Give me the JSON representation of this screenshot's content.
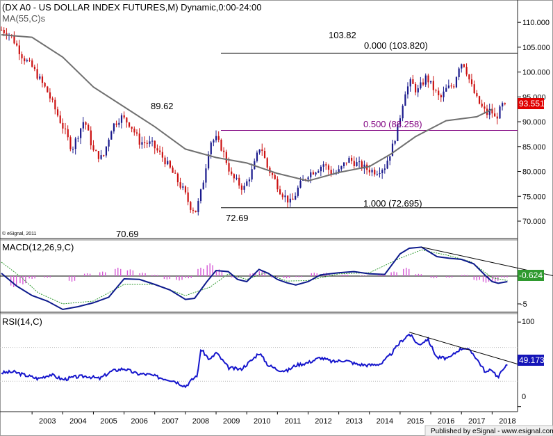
{
  "chart_data": [
    {
      "type": "candlestick",
      "title": "(DX A0 - US DOLLAR INDEX FUTURES,M) Dynamic,0:00-24:00",
      "overlay_label": "MA(55,C)s",
      "watermark": "© eSignal, 2011",
      "ylim": [
        66.5,
        114.5
      ],
      "yticks": [
        70,
        75,
        80,
        85,
        90,
        95,
        100,
        105,
        110
      ],
      "ytick_labels": [
        "70.000",
        "75.000",
        "80.000",
        "85.000",
        "90.000",
        "95.000",
        "100.000",
        "105.000",
        "110.000"
      ],
      "last_value": 93.551,
      "last_value_label": "93.551",
      "annotations": {
        "low_2008": {
          "value": 70.69,
          "label": "70.69"
        },
        "high_2008": {
          "value": 89.62,
          "label": "89.62"
        },
        "low_2011": {
          "value": 72.69,
          "label": "72.69"
        },
        "high_2017": {
          "value": 103.82,
          "label": "103.82"
        }
      },
      "fib_levels": [
        {
          "ratio": "0.000",
          "value": 103.82,
          "label": "0.000 (103.820)"
        },
        {
          "ratio": "0.500",
          "value": 88.258,
          "label": "0.500 (88.258)"
        },
        {
          "ratio": "1.000",
          "value": 72.695,
          "label": "1.000 (72.695)"
        }
      ],
      "ma_series": {
        "name": "MA(55,C)",
        "points": [
          [
            2002.0,
            107.5
          ],
          [
            2003.0,
            107.0
          ],
          [
            2004.0,
            103.0
          ],
          [
            2005.0,
            97.0
          ],
          [
            2006.0,
            93.0
          ],
          [
            2007.0,
            89.0
          ],
          [
            2008.0,
            84.5
          ],
          [
            2009.0,
            82.8
          ],
          [
            2010.0,
            81.7
          ],
          [
            2011.0,
            79.6
          ],
          [
            2012.0,
            78.1
          ],
          [
            2013.0,
            79.8
          ],
          [
            2014.0,
            81.0
          ],
          [
            2014.7,
            83.5
          ],
          [
            2015.5,
            87.0
          ],
          [
            2016.5,
            90.2
          ],
          [
            2017.5,
            91.0
          ],
          [
            2018.0,
            92.5
          ]
        ]
      },
      "close_path": [
        [
          2002.0,
          108.5
        ],
        [
          2002.3,
          107.5
        ],
        [
          2002.7,
          103.0
        ],
        [
          2003.0,
          101.0
        ],
        [
          2003.5,
          96.0
        ],
        [
          2004.0,
          89.0
        ],
        [
          2004.3,
          84.5
        ],
        [
          2004.7,
          90.5
        ],
        [
          2005.0,
          84.0
        ],
        [
          2005.3,
          82.5
        ],
        [
          2005.6,
          89.0
        ],
        [
          2005.9,
          91.0
        ],
        [
          2006.2,
          89.5
        ],
        [
          2006.5,
          86.0
        ],
        [
          2006.9,
          85.5
        ],
        [
          2007.3,
          82.5
        ],
        [
          2007.7,
          78.5
        ],
        [
          2007.95,
          76.0
        ],
        [
          2008.15,
          73.0
        ],
        [
          2008.35,
          72.0
        ],
        [
          2008.55,
          77.0
        ],
        [
          2008.8,
          86.0
        ],
        [
          2009.0,
          86.5
        ],
        [
          2009.2,
          84.5
        ],
        [
          2009.5,
          79.0
        ],
        [
          2009.9,
          76.5
        ],
        [
          2010.2,
          80.5
        ],
        [
          2010.45,
          85.5
        ],
        [
          2010.65,
          81.0
        ],
        [
          2010.85,
          79.0
        ],
        [
          2011.1,
          76.0
        ],
        [
          2011.3,
          74.5
        ],
        [
          2011.45,
          73.5
        ],
        [
          2011.7,
          77.0
        ],
        [
          2012.0,
          79.5
        ],
        [
          2012.3,
          80.5
        ],
        [
          2012.5,
          81.5
        ],
        [
          2012.8,
          79.5
        ],
        [
          2013.0,
          80.0
        ],
        [
          2013.3,
          82.5
        ],
        [
          2013.6,
          81.5
        ],
        [
          2013.9,
          80.5
        ],
        [
          2014.2,
          80.0
        ],
        [
          2014.5,
          81.0
        ],
        [
          2014.75,
          85.0
        ],
        [
          2014.95,
          89.5
        ],
        [
          2015.15,
          96.0
        ],
        [
          2015.35,
          98.0
        ],
        [
          2015.55,
          96.0
        ],
        [
          2015.85,
          99.0
        ],
        [
          2016.1,
          96.5
        ],
        [
          2016.3,
          94.5
        ],
        [
          2016.5,
          96.5
        ],
        [
          2016.75,
          97.5
        ],
        [
          2016.95,
          102.0
        ],
        [
          2017.1,
          101.5
        ],
        [
          2017.3,
          97.5
        ],
        [
          2017.5,
          94.5
        ],
        [
          2017.7,
          92.5
        ],
        [
          2017.85,
          91.5
        ],
        [
          2017.95,
          92.5
        ],
        [
          2018.1,
          90.5
        ],
        [
          2018.35,
          93.5
        ],
        [
          2018.45,
          93.55
        ]
      ]
    },
    {
      "type": "line",
      "title": "MACD(12,26,9,C)",
      "ylim": [
        -6.5,
        6.5
      ],
      "ytick_labels": {
        "low": "-5"
      },
      "last_value": -0.624,
      "last_value_label": "-0.624",
      "series": [
        {
          "name": "MACD",
          "points": [
            [
              2002.0,
              0.5
            ],
            [
              2002.5,
              -1.8
            ],
            [
              2003.0,
              -3.5
            ],
            [
              2003.5,
              -4.5
            ],
            [
              2004.0,
              -6.0
            ],
            [
              2004.5,
              -5.5
            ],
            [
              2005.0,
              -4.8
            ],
            [
              2005.5,
              -3.8
            ],
            [
              2006.0,
              -0.5
            ],
            [
              2006.5,
              -0.6
            ],
            [
              2007.0,
              -1.5
            ],
            [
              2007.5,
              -2.5
            ],
            [
              2008.0,
              -4.2
            ],
            [
              2008.3,
              -4.0
            ],
            [
              2008.7,
              -1.0
            ],
            [
              2009.0,
              1.0
            ],
            [
              2009.4,
              0.8
            ],
            [
              2009.7,
              -0.6
            ],
            [
              2010.0,
              -1.0
            ],
            [
              2010.4,
              1.2
            ],
            [
              2010.7,
              0.5
            ],
            [
              2011.0,
              -0.6
            ],
            [
              2011.3,
              -1.2
            ],
            [
              2011.6,
              -1.6
            ],
            [
              2012.0,
              -1.0
            ],
            [
              2012.4,
              0.2
            ],
            [
              2013.0,
              0.6
            ],
            [
              2013.5,
              0.8
            ],
            [
              2014.0,
              0.4
            ],
            [
              2014.5,
              0.3
            ],
            [
              2015.0,
              4.0
            ],
            [
              2015.3,
              5.0
            ],
            [
              2015.7,
              5.2
            ],
            [
              2016.2,
              3.5
            ],
            [
              2016.6,
              3.2
            ],
            [
              2017.0,
              3.0
            ],
            [
              2017.4,
              2.2
            ],
            [
              2017.8,
              0.0
            ],
            [
              2018.0,
              -1.0
            ],
            [
              2018.2,
              -1.3
            ],
            [
              2018.5,
              -1.0
            ]
          ]
        },
        {
          "name": "Signal",
          "points": [
            [
              2002.0,
              2.5
            ],
            [
              2002.6,
              0.0
            ],
            [
              2003.2,
              -3.0
            ],
            [
              2004.0,
              -5.0
            ],
            [
              2005.0,
              -4.5
            ],
            [
              2006.0,
              -1.5
            ],
            [
              2007.0,
              -1.5
            ],
            [
              2008.0,
              -3.5
            ],
            [
              2008.8,
              -2.0
            ],
            [
              2009.4,
              0.4
            ],
            [
              2010.0,
              -0.6
            ],
            [
              2010.6,
              0.6
            ],
            [
              2011.3,
              -0.9
            ],
            [
              2012.0,
              -0.8
            ],
            [
              2013.0,
              0.4
            ],
            [
              2014.0,
              0.6
            ],
            [
              2015.0,
              3.2
            ],
            [
              2015.7,
              4.7
            ],
            [
              2016.5,
              3.8
            ],
            [
              2017.3,
              2.6
            ],
            [
              2018.0,
              -0.3
            ],
            [
              2018.5,
              -0.8
            ]
          ]
        }
      ],
      "histogram": [
        [
          2002.4,
          -2.0
        ],
        [
          2002.7,
          -1.5
        ],
        [
          2003.0,
          -0.5
        ],
        [
          2003.5,
          -0.3
        ],
        [
          2004.3,
          -1.0
        ],
        [
          2004.8,
          0.5
        ],
        [
          2005.3,
          0.8
        ],
        [
          2005.8,
          1.5
        ],
        [
          2006.2,
          1.2
        ],
        [
          2006.6,
          0.6
        ],
        [
          2007.0,
          0.2
        ],
        [
          2007.4,
          -0.6
        ],
        [
          2007.8,
          -0.8
        ],
        [
          2008.1,
          -0.4
        ],
        [
          2008.5,
          1.5
        ],
        [
          2008.8,
          2.3
        ],
        [
          2009.1,
          1.2
        ],
        [
          2009.6,
          -0.3
        ],
        [
          2010.2,
          0.5
        ],
        [
          2010.5,
          1.0
        ],
        [
          2010.9,
          -0.3
        ],
        [
          2011.3,
          -0.4
        ],
        [
          2011.7,
          -0.2
        ],
        [
          2012.2,
          0.6
        ],
        [
          2012.6,
          0.6
        ],
        [
          2013.2,
          0.3
        ],
        [
          2013.8,
          0.1
        ],
        [
          2014.4,
          0.4
        ],
        [
          2014.8,
          0.8
        ],
        [
          2015.2,
          1.5
        ],
        [
          2015.6,
          0.4
        ],
        [
          2016.1,
          -0.4
        ],
        [
          2016.6,
          -0.3
        ],
        [
          2017.1,
          0.2
        ],
        [
          2017.5,
          -0.8
        ],
        [
          2017.8,
          -1.2
        ],
        [
          2018.1,
          -1.0
        ],
        [
          2018.4,
          -0.3
        ]
      ]
    },
    {
      "type": "line",
      "title": "RSI(14,C)",
      "ylim": [
        -6,
        110
      ],
      "yticks": [
        0,
        100
      ],
      "ytick_labels": [
        "0",
        "100"
      ],
      "reference_levels": [
        30,
        70
      ],
      "last_value": 49.173,
      "last_value_label": "49.173",
      "series": [
        {
          "name": "RSI",
          "points": [
            [
              2002.0,
              40.0
            ],
            [
              2002.4,
              41.0
            ],
            [
              2002.8,
              37.0
            ],
            [
              2003.2,
              33.0
            ],
            [
              2003.6,
              38.0
            ],
            [
              2004.0,
              32.0
            ],
            [
              2004.4,
              35.0
            ],
            [
              2004.8,
              36.0
            ],
            [
              2005.2,
              33.0
            ],
            [
              2005.6,
              42.0
            ],
            [
              2006.0,
              45.0
            ],
            [
              2006.4,
              39.0
            ],
            [
              2006.8,
              38.0
            ],
            [
              2007.2,
              34.0
            ],
            [
              2007.6,
              31.0
            ],
            [
              2008.0,
              24.0
            ],
            [
              2008.4,
              38.0
            ],
            [
              2008.5,
              68.0
            ],
            [
              2008.8,
              55.0
            ],
            [
              2009.0,
              64.0
            ],
            [
              2009.4,
              46.0
            ],
            [
              2009.8,
              44.0
            ],
            [
              2010.2,
              56.0
            ],
            [
              2010.4,
              64.0
            ],
            [
              2010.7,
              49.0
            ],
            [
              2011.0,
              44.0
            ],
            [
              2011.3,
              42.0
            ],
            [
              2011.6,
              49.0
            ],
            [
              2012.0,
              52.0
            ],
            [
              2012.4,
              58.0
            ],
            [
              2012.8,
              53.0
            ],
            [
              2013.2,
              55.0
            ],
            [
              2013.6,
              50.0
            ],
            [
              2014.0,
              49.0
            ],
            [
              2014.4,
              51.0
            ],
            [
              2014.7,
              62.0
            ],
            [
              2015.0,
              76.0
            ],
            [
              2015.3,
              86.0
            ],
            [
              2015.6,
              73.0
            ],
            [
              2015.9,
              80.0
            ],
            [
              2016.2,
              58.0
            ],
            [
              2016.6,
              57.0
            ],
            [
              2016.9,
              67.0
            ],
            [
              2017.1,
              70.0
            ],
            [
              2017.4,
              62.0
            ],
            [
              2017.8,
              40.0
            ],
            [
              2018.0,
              44.0
            ],
            [
              2018.2,
              34.0
            ],
            [
              2018.4,
              48.0
            ],
            [
              2018.5,
              49.17
            ]
          ]
        }
      ]
    }
  ],
  "x_axis": {
    "range": [
      2002.0,
      2018.83
    ],
    "tick_labels": [
      "2003",
      "2004",
      "2005",
      "2006",
      "2007",
      "2008",
      "2009",
      "2010",
      "2011",
      "2012",
      "2013",
      "2014",
      "2015",
      "2016",
      "2017",
      "2018"
    ]
  },
  "footer": {
    "credit": "Published by eSignal - www.esignal.com"
  },
  "colors": {
    "up": "#1a1a8c",
    "down": "#cc1111",
    "ma": "#707070",
    "fib_mid": "#800080",
    "macd": "#0d1a8c",
    "signal": "#2f9a2f",
    "histogram": "#d65ad6",
    "rsi": "#1515cc",
    "price_tag": "#e00000",
    "macd_tag": "#2f9a2f",
    "rsi_tag": "#1515b8"
  }
}
